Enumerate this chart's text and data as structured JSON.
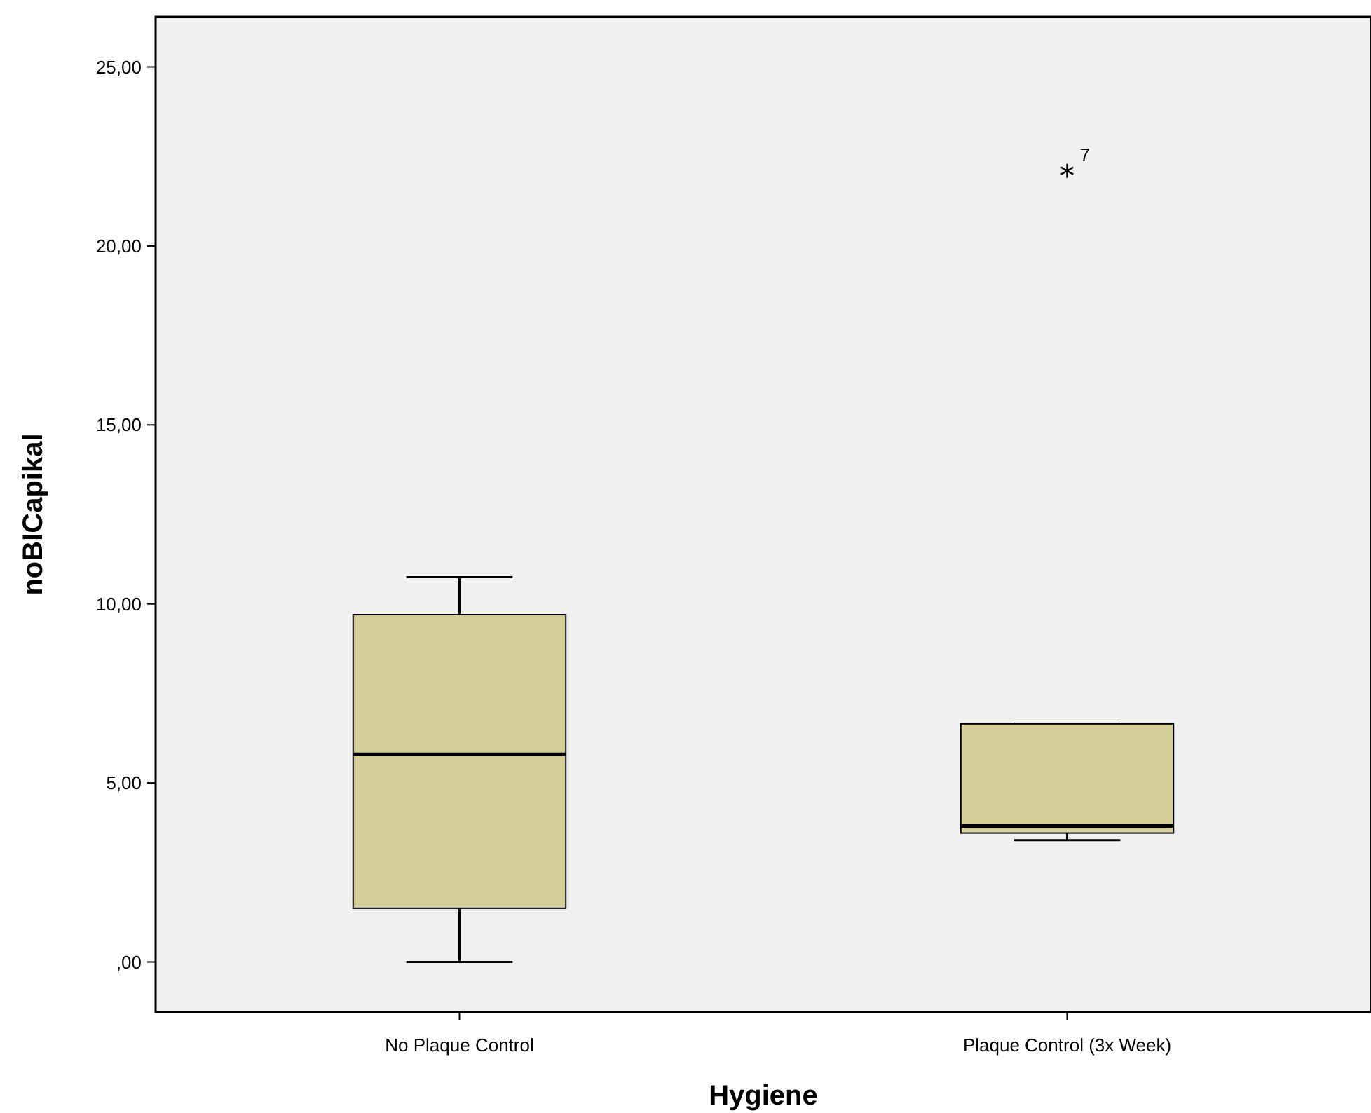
{
  "chart_data": {
    "type": "box",
    "xlabel": "Hygiene",
    "ylabel": "noBICapikal",
    "categories": [
      "No Plaque Control",
      "Plaque Control (3x Week)"
    ],
    "boxes": [
      {
        "low": 0,
        "q1": 1.5,
        "median": 5.8,
        "q3": 9.7,
        "high": 10.75
      },
      {
        "low": 3.4,
        "q1": 3.6,
        "median": 3.8,
        "q3": 6.65,
        "high": 6.65,
        "outliers": [
          22.1
        ]
      }
    ],
    "color": "#d4cf98",
    "marker": "star",
    "annotations": [
      "7"
    ],
    "ylim": [
      -1.4,
      26.4
    ],
    "yticks": [
      {
        "value": 0,
        "label": ",00"
      },
      {
        "value": 5,
        "label": "5,00"
      },
      {
        "value": 10,
        "label": "10,00"
      },
      {
        "value": 15,
        "label": "15,00"
      },
      {
        "value": 20,
        "label": "20,00"
      },
      {
        "value": 25,
        "label": "25,00"
      }
    ],
    "grid": false
  }
}
